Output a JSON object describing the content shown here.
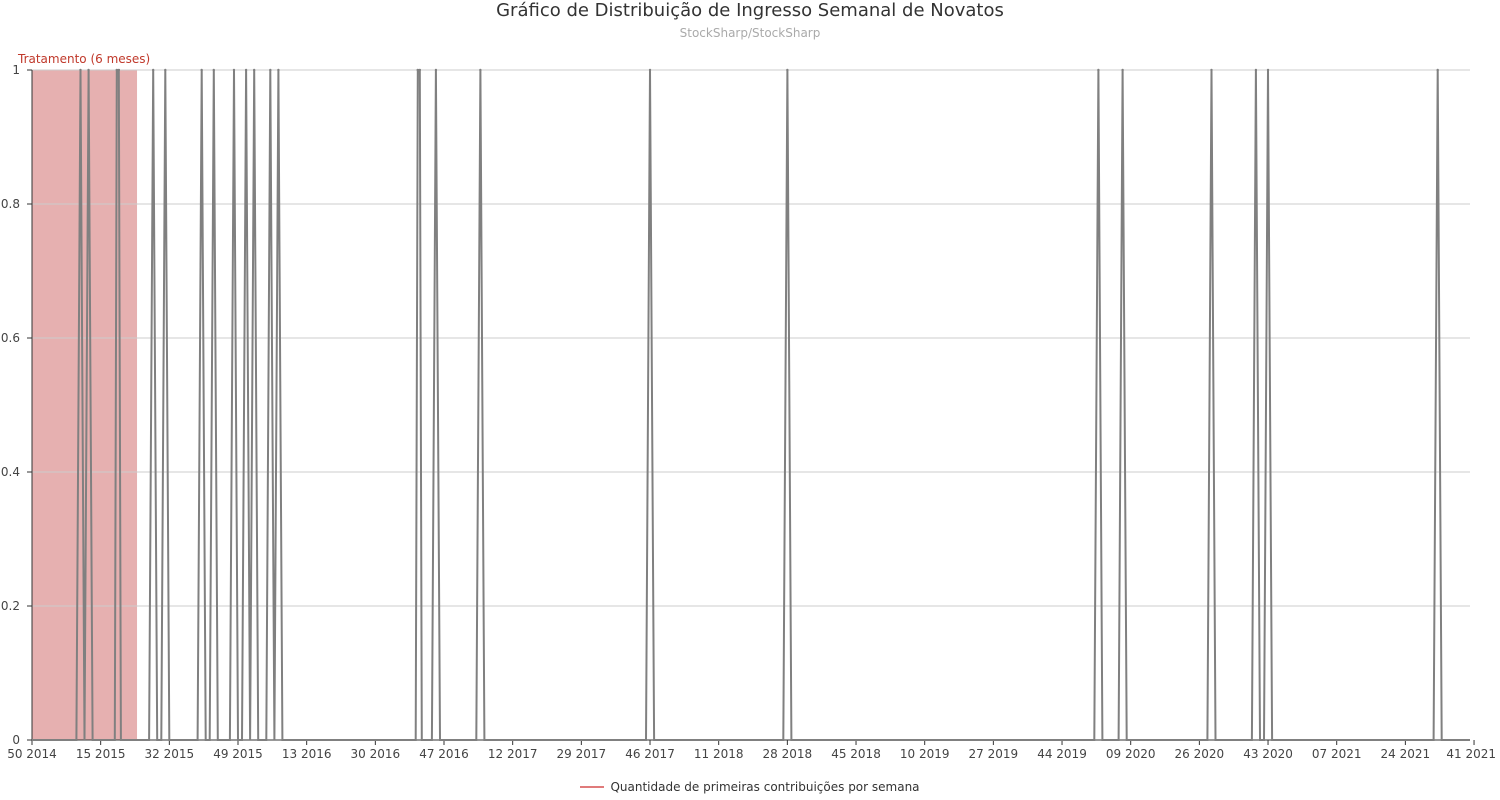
{
  "chart_data": {
    "type": "line",
    "title": "Gráfico de Distribuição de Ingresso Semanal de Novatos",
    "subtitle": "StockSharp/StockSharp",
    "xlabel": "",
    "ylabel": "",
    "ylim": [
      0,
      1
    ],
    "y_ticks": [
      "0",
      "0.2",
      "0.4",
      "0.6",
      "0.8",
      "1"
    ],
    "x_tick_labels": [
      "50 2014",
      "15 2015",
      "32 2015",
      "49 2015",
      "13 2016",
      "30 2016",
      "47 2016",
      "12 2017",
      "29 2017",
      "46 2017",
      "11 2018",
      "28 2018",
      "45 2018",
      "10 2019",
      "27 2019",
      "44 2019",
      "09 2020",
      "26 2020",
      "43 2020",
      "07 2021",
      "24 2021",
      "41 2021"
    ],
    "x_range_weeks": [
      0,
      356
    ],
    "grid": true,
    "legend_placement": "bottom",
    "series": [
      {
        "name": "Quantidade de primeiras contribuições por semana",
        "legend_color": "#e07b7b",
        "line_color": "#808080",
        "values_at_week": {
          "12": 1,
          "14": 1,
          "21": 1,
          "21.5": 1,
          "30": 1,
          "33": 1,
          "42": 1,
          "45": 1,
          "50": 1,
          "53": 1,
          "55": 1,
          "59": 1,
          "61": 1,
          "95.5": 1,
          "96": 1,
          "100": 1,
          "111": 1,
          "153": 1,
          "187": 1,
          "264": 1,
          "270": 1,
          "292": 1,
          "303": 1,
          "306": 1,
          "348": 1
        },
        "default_value": 0
      }
    ],
    "annotations": [
      {
        "type": "band",
        "label": "Tratamento (6 meses)",
        "x_start_week": 0,
        "x_end_week": 26,
        "color": "#e6b0b0",
        "label_color": "#c0392b"
      }
    ]
  }
}
